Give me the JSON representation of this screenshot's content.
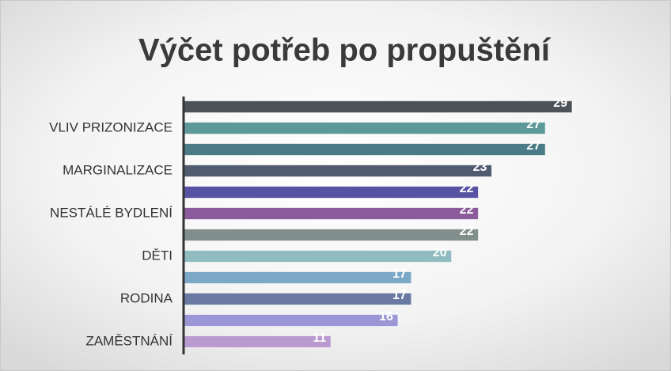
{
  "chart_data": {
    "type": "hbar",
    "title": "Výčet potřeb po propuštění",
    "categories": [
      null,
      "VLIV PRIZONIZACE",
      null,
      "MARGINALIZACE",
      null,
      "NESTÁLÉ BYDLENÍ",
      null,
      "DĚTI",
      null,
      "RODINA",
      null,
      "ZAMĚSTNÁNÍ"
    ],
    "values": [
      29,
      27,
      27,
      23,
      22,
      22,
      22,
      20,
      17,
      17,
      16,
      11
    ],
    "colors": [
      "#4b5359",
      "#5e9999",
      "#4a7b86",
      "#505b6f",
      "#5753a2",
      "#8b5b9b",
      "#808f8b",
      "#90bcc1",
      "#7ba9c5",
      "#6979a1",
      "#9b96d5",
      "#b99ad1"
    ],
    "grid": false
  }
}
